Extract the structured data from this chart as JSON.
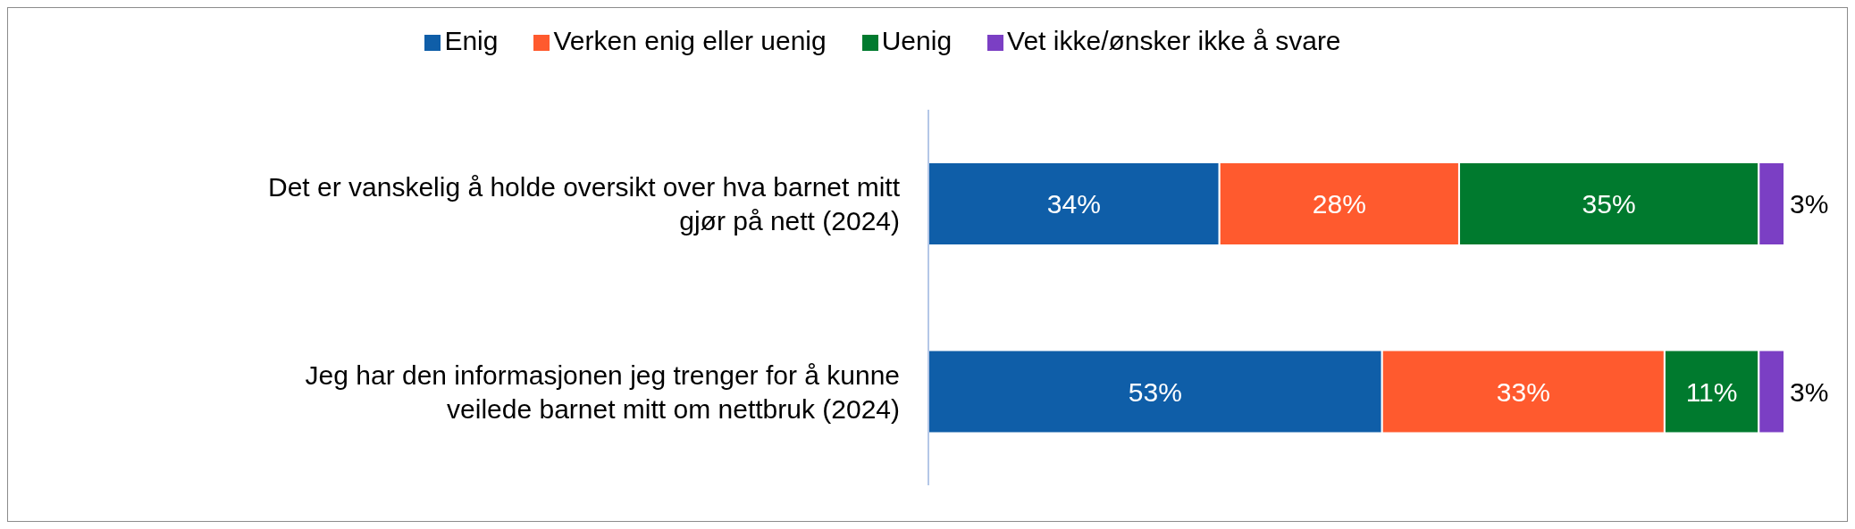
{
  "chart_data": {
    "type": "bar",
    "orientation": "horizontal",
    "stacked": true,
    "legend": "top",
    "categories": [
      "Det er vanskelig å holde oversikt over hva barnet mitt gjør på nett (2024)",
      "Jeg har den informasjonen jeg trenger for å kunne veilede barnet mitt om nettbruk (2024)"
    ],
    "series": [
      {
        "name": "Enig",
        "color": "#0f5ea8",
        "values": [
          34,
          53
        ],
        "value_labels": [
          "34%",
          "53%"
        ]
      },
      {
        "name": "Verken enig eller uenig",
        "color": "#ff5a2e",
        "values": [
          28,
          33
        ],
        "value_labels": [
          "28%",
          "33%"
        ]
      },
      {
        "name": "Uenig",
        "color": "#007a2e",
        "values": [
          35,
          11
        ],
        "value_labels": [
          "35%",
          "11%"
        ]
      },
      {
        "name": "Vet ikke/ønsker ikke å svare",
        "color": "#7b3fc4",
        "values": [
          3,
          3
        ],
        "value_labels": [
          "3%",
          "3%"
        ]
      }
    ]
  }
}
